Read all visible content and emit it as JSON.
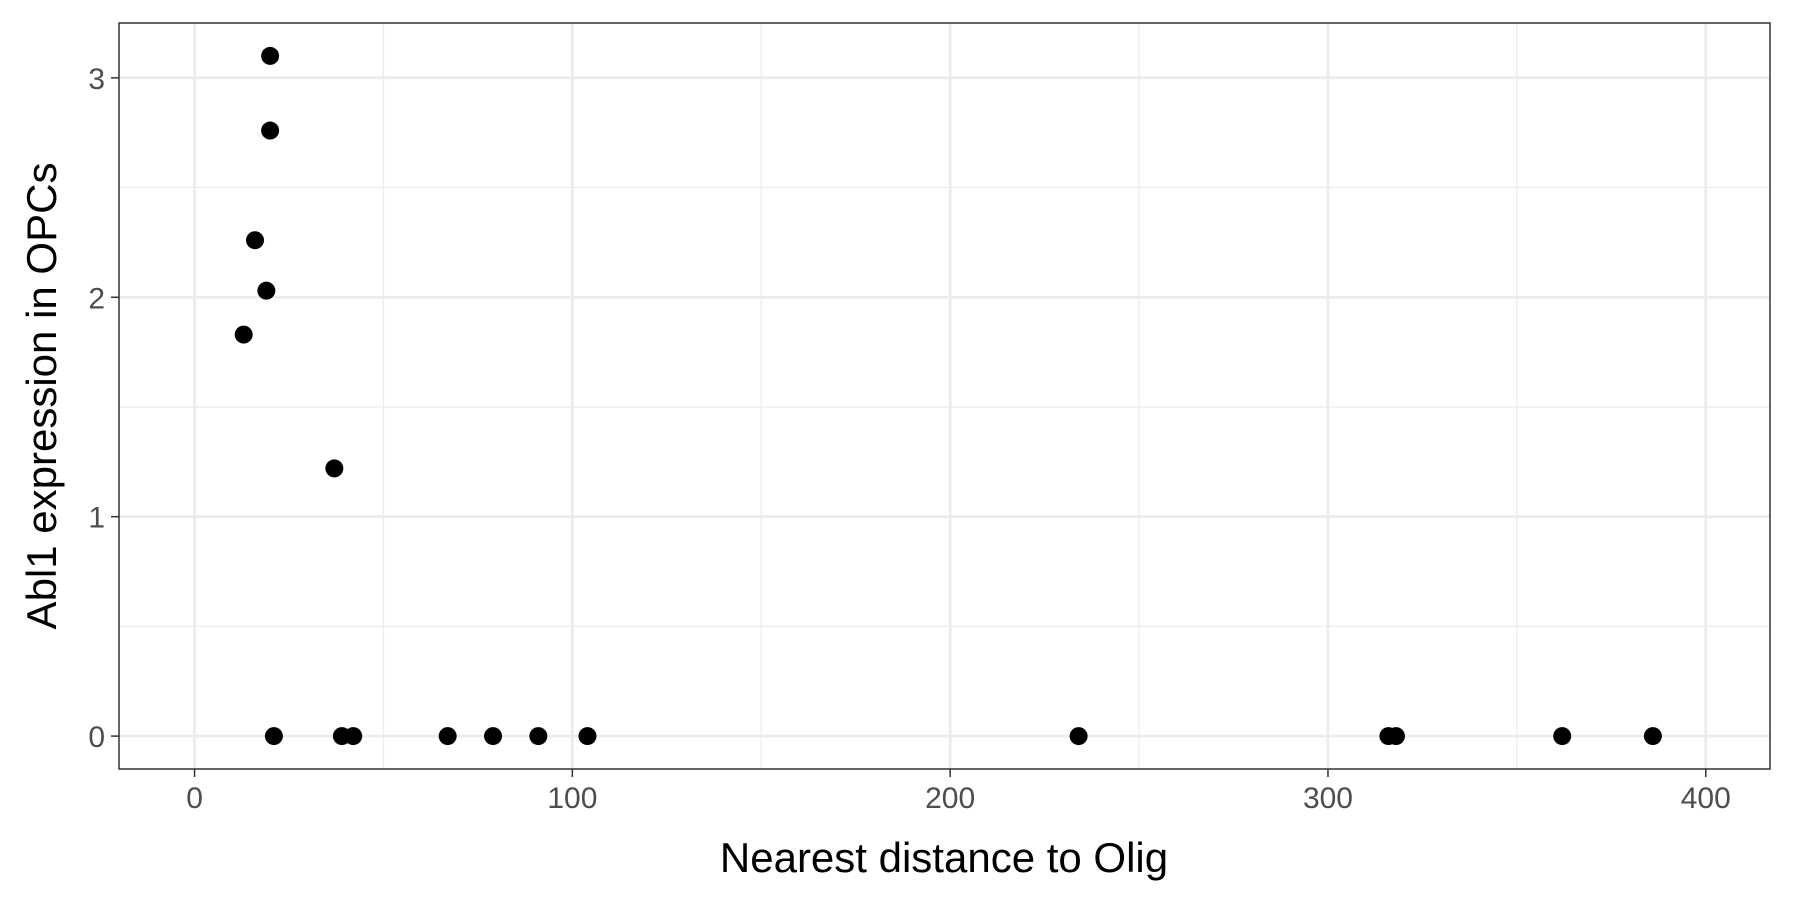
{
  "chart_data": {
    "type": "scatter",
    "title": "",
    "xlabel": "Nearest distance to Olig",
    "ylabel": "Abl1 expression in OPCs",
    "xlim": [
      -20,
      417
    ],
    "ylim": [
      -0.15,
      3.25
    ],
    "x_ticks": [
      0,
      100,
      200,
      300,
      400
    ],
    "y_ticks": [
      0,
      1,
      2,
      3
    ],
    "x_tick_labels": [
      "0",
      "100",
      "200",
      "300",
      "400"
    ],
    "y_tick_labels": [
      "0",
      "1",
      "2",
      "3"
    ],
    "grid": true,
    "legend": "none",
    "point_color": "#000000",
    "points": [
      {
        "x": 20,
        "y": 3.1
      },
      {
        "x": 20,
        "y": 2.76
      },
      {
        "x": 16,
        "y": 2.26
      },
      {
        "x": 19,
        "y": 2.03
      },
      {
        "x": 13,
        "y": 1.83
      },
      {
        "x": 37,
        "y": 1.22
      },
      {
        "x": 21,
        "y": 0
      },
      {
        "x": 39,
        "y": 0
      },
      {
        "x": 42,
        "y": 0
      },
      {
        "x": 67,
        "y": 0
      },
      {
        "x": 79,
        "y": 0
      },
      {
        "x": 91,
        "y": 0
      },
      {
        "x": 104,
        "y": 0
      },
      {
        "x": 234,
        "y": 0
      },
      {
        "x": 316,
        "y": 0
      },
      {
        "x": 318,
        "y": 0
      },
      {
        "x": 362,
        "y": 0
      },
      {
        "x": 386,
        "y": 0
      }
    ]
  }
}
